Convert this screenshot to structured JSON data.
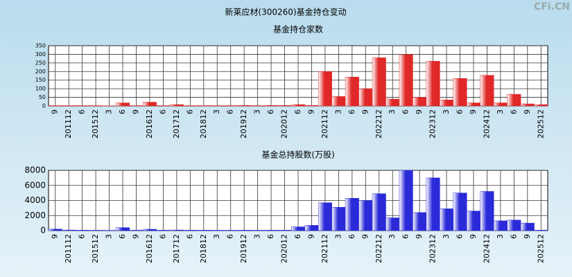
{
  "title": "新莱应材(300260)基金持仓变动",
  "watermark": "CFi.CN",
  "chart_data": [
    {
      "type": "bar",
      "title": "基金持仓家数",
      "color": "#e02828",
      "categories": [
        "9",
        "201112",
        "6",
        "201512",
        "3",
        "6",
        "9",
        "201612",
        "6",
        "201712",
        "6",
        "201812",
        "3",
        "6",
        "201912",
        "3",
        "6",
        "202012",
        "6",
        "9",
        "202112",
        "3",
        "6",
        "9",
        "202212",
        "3",
        "6",
        "9",
        "202312",
        "3",
        "6",
        "9",
        "202412",
        "3",
        "6",
        "9",
        "202512"
      ],
      "values": [
        2,
        2,
        2,
        2,
        1,
        18,
        2,
        22,
        2,
        8,
        2,
        2,
        2,
        2,
        3,
        2,
        3,
        3,
        8,
        3,
        200,
        55,
        168,
        100,
        280,
        40,
        298,
        50,
        260,
        35,
        160,
        18,
        178,
        18,
        68,
        12,
        8
      ],
      "ylim": [
        0,
        350
      ],
      "yticks": [
        0,
        50,
        100,
        150,
        200,
        250,
        300,
        350
      ],
      "grid": true
    },
    {
      "type": "bar",
      "title": "基金总持股数(万股)",
      "color": "#2a2ad8",
      "categories": [
        "9",
        "201112",
        "6",
        "201512",
        "3",
        "6",
        "9",
        "201612",
        "6",
        "201712",
        "6",
        "201812",
        "3",
        "6",
        "201912",
        "3",
        "6",
        "202012",
        "6",
        "9",
        "202112",
        "3",
        "6",
        "9",
        "202212",
        "3",
        "6",
        "9",
        "202312",
        "3",
        "6",
        "9",
        "202412",
        "3",
        "6",
        "9",
        "202512"
      ],
      "values": [
        200,
        80,
        60,
        50,
        40,
        400,
        60,
        180,
        60,
        80,
        60,
        60,
        50,
        50,
        60,
        50,
        60,
        60,
        500,
        700,
        3700,
        3100,
        4300,
        4000,
        4900,
        1700,
        8000,
        2400,
        7000,
        2900,
        5000,
        2600,
        5200,
        1300,
        1400,
        1000,
        60
      ],
      "ylim": [
        0,
        8000
      ],
      "yticks": [
        0,
        2000,
        4000,
        6000,
        8000
      ],
      "grid": true
    }
  ]
}
